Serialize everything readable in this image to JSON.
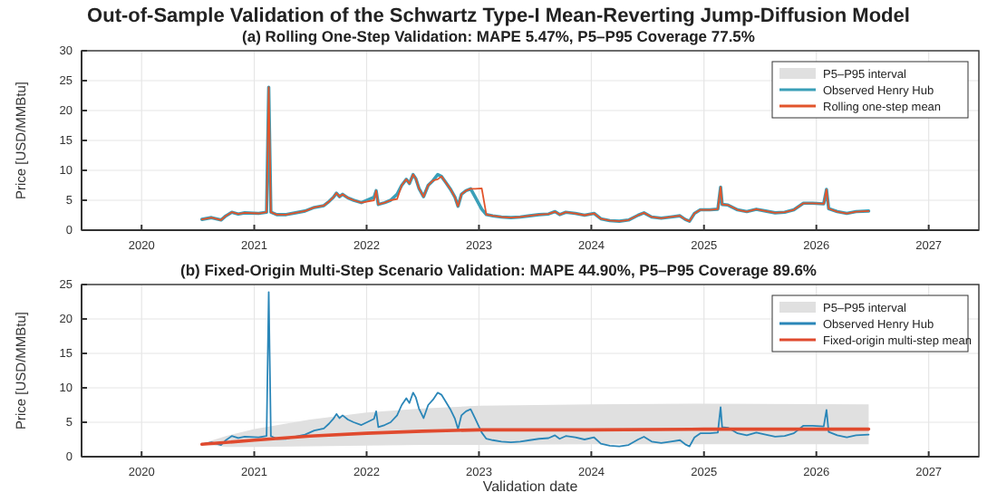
{
  "chart_data": [
    {
      "type": "line",
      "title": "Out-of-Sample Validation of the Schwartz Type-I Mean-Reverting Jump-Diffusion Model",
      "subtitle": "(a) Rolling One-Step Validation: MAPE 5.47%, P5–P95 Coverage 77.5%",
      "ylabel": "Price [USD/MMBtu]",
      "xlim": [
        "2019-06-20",
        "2027-06-13"
      ],
      "xticks": [
        {
          "value": "2020-01-01",
          "label": "2020"
        },
        {
          "value": "2021-01-01",
          "label": "2021"
        },
        {
          "value": "2022-01-01",
          "label": "2022"
        },
        {
          "value": "2023-01-01",
          "label": "2023"
        },
        {
          "value": "2024-01-01",
          "label": "2024"
        },
        {
          "value": "2025-01-01",
          "label": "2025"
        },
        {
          "value": "2026-01-01",
          "label": "2026"
        },
        {
          "value": "2027-01-01",
          "label": "2027"
        }
      ],
      "ylim": [
        0,
        30
      ],
      "yticks": [
        0,
        5,
        10,
        15,
        20,
        25,
        30
      ],
      "grid": true,
      "legend": "top right",
      "x": [
        "2020-07-15",
        "2020-08-15",
        "2020-09-15",
        "2020-10-01",
        "2020-10-20",
        "2020-11-10",
        "2020-12-01",
        "2021-01-15",
        "2021-02-10",
        "2021-02-17",
        "2021-02-24",
        "2021-03-15",
        "2021-04-15",
        "2021-05-15",
        "2021-06-15",
        "2021-07-15",
        "2021-08-15",
        "2021-09-01",
        "2021-09-15",
        "2021-09-25",
        "2021-10-05",
        "2021-10-15",
        "2021-11-01",
        "2021-11-20",
        "2021-12-15",
        "2022-01-25",
        "2022-02-01",
        "2022-02-08",
        "2022-03-01",
        "2022-03-20",
        "2022-04-10",
        "2022-04-25",
        "2022-05-10",
        "2022-05-20",
        "2022-06-01",
        "2022-06-10",
        "2022-06-20",
        "2022-07-05",
        "2022-07-20",
        "2022-08-05",
        "2022-08-20",
        "2022-09-01",
        "2022-09-15",
        "2022-10-01",
        "2022-10-15",
        "2022-10-25",
        "2022-11-05",
        "2022-11-20",
        "2022-12-05",
        "2022-12-20",
        "2023-01-10",
        "2023-01-25",
        "2023-02-15",
        "2023-03-15",
        "2023-04-15",
        "2023-05-15",
        "2023-06-15",
        "2023-07-15",
        "2023-08-15",
        "2023-09-05",
        "2023-09-20",
        "2023-10-10",
        "2023-11-10",
        "2023-12-10",
        "2024-01-10",
        "2024-02-01",
        "2024-03-01",
        "2024-04-01",
        "2024-05-01",
        "2024-06-01",
        "2024-06-20",
        "2024-07-15",
        "2024-08-15",
        "2024-09-15",
        "2024-10-15",
        "2024-11-01",
        "2024-11-15",
        "2024-12-01",
        "2024-12-20",
        "2025-01-20",
        "2025-02-15",
        "2025-02-24",
        "2025-03-01",
        "2025-03-20",
        "2025-04-20",
        "2025-05-20",
        "2025-06-20",
        "2025-07-20",
        "2025-08-20",
        "2025-09-20",
        "2025-10-20",
        "2025-11-20",
        "2025-12-20",
        "2026-01-25",
        "2026-02-03",
        "2026-02-10",
        "2026-03-10",
        "2026-04-10",
        "2026-05-10",
        "2026-06-20"
      ],
      "series": [
        {
          "name": "P5–P95 interval",
          "type": "area",
          "color": "#e0e0e0",
          "values": [
            null,
            null,
            null,
            null,
            null,
            null,
            null,
            null,
            null,
            null,
            null,
            null,
            null,
            null,
            null,
            null,
            null,
            null,
            null,
            null,
            null,
            null,
            null,
            null,
            null,
            null,
            null,
            null,
            null,
            null,
            null,
            null,
            null,
            null,
            null,
            null,
            null,
            null,
            null,
            null,
            null,
            null,
            null,
            null,
            null,
            null,
            null,
            null,
            null,
            null,
            null,
            null,
            null,
            null,
            null,
            null,
            null,
            null,
            null,
            null,
            null,
            null,
            null,
            null,
            null,
            null,
            null,
            null,
            null,
            null,
            null,
            null,
            null,
            null,
            null,
            null,
            null,
            null,
            null,
            null,
            null,
            null,
            null,
            null,
            null,
            null,
            null,
            null,
            null,
            null,
            null,
            null,
            null,
            null,
            null,
            null,
            null,
            null,
            null,
            null
          ]
        },
        {
          "name": "Observed Henry Hub",
          "color": "#3a9fb8",
          "values": [
            1.8,
            2.1,
            1.7,
            2.4,
            3.0,
            2.7,
            2.9,
            2.8,
            3.0,
            23.9,
            3.0,
            2.6,
            2.6,
            2.9,
            3.2,
            3.8,
            4.1,
            4.8,
            5.5,
            6.2,
            5.6,
            6.0,
            5.4,
            5.0,
            4.6,
            5.5,
            6.6,
            4.3,
            4.6,
            5.0,
            6.0,
            7.5,
            8.5,
            7.8,
            9.3,
            8.6,
            7.0,
            5.6,
            7.5,
            8.3,
            9.3,
            9.0,
            8.0,
            6.8,
            5.5,
            4.0,
            6.0,
            6.6,
            6.9,
            5.5,
            3.5,
            2.6,
            2.4,
            2.2,
            2.1,
            2.2,
            2.4,
            2.6,
            2.7,
            3.1,
            2.6,
            3.0,
            2.8,
            2.5,
            2.8,
            1.9,
            1.6,
            1.5,
            1.7,
            2.5,
            2.9,
            2.2,
            2.0,
            2.2,
            2.4,
            1.8,
            1.5,
            2.8,
            3.4,
            3.4,
            3.5,
            7.2,
            4.3,
            4.2,
            3.4,
            3.1,
            3.5,
            3.2,
            2.9,
            3.0,
            3.4,
            4.5,
            4.5,
            4.4,
            6.8,
            3.6,
            3.1,
            2.8,
            3.1,
            3.2
          ]
        },
        {
          "name": "Rolling one-step mean",
          "color": "#e2542b",
          "values": [
            1.8,
            2.1,
            1.7,
            2.4,
            3.0,
            2.7,
            2.9,
            2.8,
            3.0,
            23.9,
            3.0,
            2.6,
            2.6,
            2.9,
            3.2,
            3.8,
            4.1,
            4.8,
            5.5,
            6.2,
            5.6,
            6.0,
            5.4,
            5.0,
            4.6,
            5.0,
            6.6,
            4.3,
            4.6,
            5.0,
            5.2,
            7.5,
            8.5,
            7.8,
            9.3,
            8.6,
            7.0,
            5.6,
            7.5,
            8.3,
            8.5,
            9.0,
            8.0,
            6.8,
            5.5,
            4.0,
            6.0,
            6.6,
            6.9,
            6.9,
            7.0,
            2.6,
            2.4,
            2.2,
            2.1,
            2.2,
            2.4,
            2.6,
            2.7,
            3.1,
            2.6,
            3.0,
            2.8,
            2.5,
            2.8,
            1.9,
            1.6,
            1.5,
            1.7,
            2.5,
            2.9,
            2.2,
            2.0,
            2.2,
            2.4,
            1.8,
            1.5,
            2.8,
            3.4,
            3.4,
            3.5,
            7.2,
            4.3,
            4.2,
            3.4,
            3.1,
            3.5,
            3.2,
            2.9,
            3.0,
            3.4,
            4.5,
            4.5,
            4.4,
            6.8,
            3.6,
            3.1,
            2.8,
            3.1,
            3.2
          ]
        }
      ]
    },
    {
      "type": "line",
      "title": "(b) Fixed-Origin Multi-Step Scenario Validation: MAPE 44.90%, P5–P95 Coverage 89.6%",
      "xlabel": "Validation date",
      "ylabel": "Price [USD/MMBtu]",
      "xlim": [
        "2019-06-20",
        "2027-06-13"
      ],
      "xticks": [
        {
          "value": "2020-01-01",
          "label": "2020"
        },
        {
          "value": "2021-01-01",
          "label": "2021"
        },
        {
          "value": "2022-01-01",
          "label": "2022"
        },
        {
          "value": "2023-01-01",
          "label": "2023"
        },
        {
          "value": "2024-01-01",
          "label": "2024"
        },
        {
          "value": "2025-01-01",
          "label": "2025"
        },
        {
          "value": "2026-01-01",
          "label": "2026"
        },
        {
          "value": "2027-01-01",
          "label": "2027"
        }
      ],
      "ylim": [
        0,
        25
      ],
      "yticks": [
        0,
        5,
        10,
        15,
        20,
        25
      ],
      "grid": true,
      "legend": "top right",
      "x": [
        "2020-07-15",
        "2020-08-15",
        "2020-09-15",
        "2020-10-01",
        "2020-10-20",
        "2020-11-10",
        "2020-12-01",
        "2021-01-15",
        "2021-02-10",
        "2021-02-17",
        "2021-02-24",
        "2021-03-15",
        "2021-04-15",
        "2021-05-15",
        "2021-06-15",
        "2021-07-15",
        "2021-08-15",
        "2021-09-01",
        "2021-09-15",
        "2021-09-25",
        "2021-10-05",
        "2021-10-15",
        "2021-11-01",
        "2021-11-20",
        "2021-12-15",
        "2022-01-25",
        "2022-02-01",
        "2022-02-08",
        "2022-03-01",
        "2022-03-20",
        "2022-04-10",
        "2022-04-25",
        "2022-05-10",
        "2022-05-20",
        "2022-06-01",
        "2022-06-10",
        "2022-06-20",
        "2022-07-05",
        "2022-07-20",
        "2022-08-05",
        "2022-08-20",
        "2022-09-01",
        "2022-09-15",
        "2022-10-01",
        "2022-10-15",
        "2022-10-25",
        "2022-11-05",
        "2022-11-20",
        "2022-12-05",
        "2022-12-20",
        "2023-01-10",
        "2023-01-25",
        "2023-02-15",
        "2023-03-15",
        "2023-04-15",
        "2023-05-15",
        "2023-06-15",
        "2023-07-15",
        "2023-08-15",
        "2023-09-05",
        "2023-09-20",
        "2023-10-10",
        "2023-11-10",
        "2023-12-10",
        "2024-01-10",
        "2024-02-01",
        "2024-03-01",
        "2024-04-01",
        "2024-05-01",
        "2024-06-01",
        "2024-06-20",
        "2024-07-15",
        "2024-08-15",
        "2024-09-15",
        "2024-10-15",
        "2024-11-01",
        "2024-11-15",
        "2024-12-01",
        "2024-12-20",
        "2025-01-20",
        "2025-02-15",
        "2025-02-24",
        "2025-03-01",
        "2025-03-20",
        "2025-04-20",
        "2025-05-20",
        "2025-06-20",
        "2025-07-20",
        "2025-08-20",
        "2025-09-20",
        "2025-10-20",
        "2025-11-20",
        "2025-12-20",
        "2026-01-25",
        "2026-02-03",
        "2026-02-10",
        "2026-03-10",
        "2026-04-10",
        "2026-05-10",
        "2026-06-20"
      ],
      "series": [
        {
          "name": "P5–P95 interval",
          "type": "area",
          "color": "#e0e0e0",
          "x": [
            "2020-07-15",
            "2020-10-01",
            "2021-01-01",
            "2021-07-01",
            "2022-01-01",
            "2022-07-01",
            "2023-01-01",
            "2024-01-01",
            "2025-01-01",
            "2026-06-20"
          ],
          "values": [
            null,
            null,
            null,
            null,
            null,
            null,
            null,
            null,
            null,
            null
          ],
          "lower": [
            1.8,
            1.4,
            1.4,
            1.5,
            1.6,
            1.7,
            1.7,
            1.8,
            1.8,
            1.8
          ],
          "upper": [
            1.9,
            3.0,
            4.0,
            5.4,
            6.4,
            7.0,
            7.4,
            7.6,
            7.7,
            7.6
          ]
        },
        {
          "name": "Observed Henry Hub",
          "color": "#2a86b8",
          "values": [
            1.8,
            2.1,
            1.7,
            2.4,
            3.0,
            2.7,
            2.9,
            2.8,
            3.0,
            23.9,
            3.0,
            2.6,
            2.6,
            2.9,
            3.2,
            3.8,
            4.1,
            4.8,
            5.5,
            6.2,
            5.6,
            6.0,
            5.4,
            5.0,
            4.6,
            5.5,
            6.6,
            4.3,
            4.6,
            5.0,
            6.0,
            7.5,
            8.5,
            7.8,
            9.3,
            8.6,
            7.0,
            5.6,
            7.5,
            8.3,
            9.3,
            9.0,
            8.0,
            6.8,
            5.5,
            4.0,
            6.0,
            6.6,
            6.9,
            5.5,
            3.5,
            2.6,
            2.4,
            2.2,
            2.1,
            2.2,
            2.4,
            2.6,
            2.7,
            3.1,
            2.6,
            3.0,
            2.8,
            2.5,
            2.8,
            1.9,
            1.6,
            1.5,
            1.7,
            2.5,
            2.9,
            2.2,
            2.0,
            2.2,
            2.4,
            1.8,
            1.5,
            2.8,
            3.4,
            3.4,
            3.5,
            7.2,
            4.3,
            4.2,
            3.4,
            3.1,
            3.5,
            3.2,
            2.9,
            3.0,
            3.4,
            4.5,
            4.5,
            4.4,
            6.8,
            3.6,
            3.1,
            2.8,
            3.1,
            3.2
          ]
        },
        {
          "name": "Fixed-origin multi-step mean",
          "color": "#e04a2e",
          "x": [
            "2020-07-15",
            "2021-01-01",
            "2021-07-01",
            "2022-01-01",
            "2022-07-01",
            "2023-01-01",
            "2024-01-01",
            "2025-01-01",
            "2026-06-20"
          ],
          "values": [
            1.8,
            2.4,
            3.0,
            3.4,
            3.7,
            3.9,
            3.9,
            4.0,
            4.0
          ]
        }
      ]
    }
  ]
}
